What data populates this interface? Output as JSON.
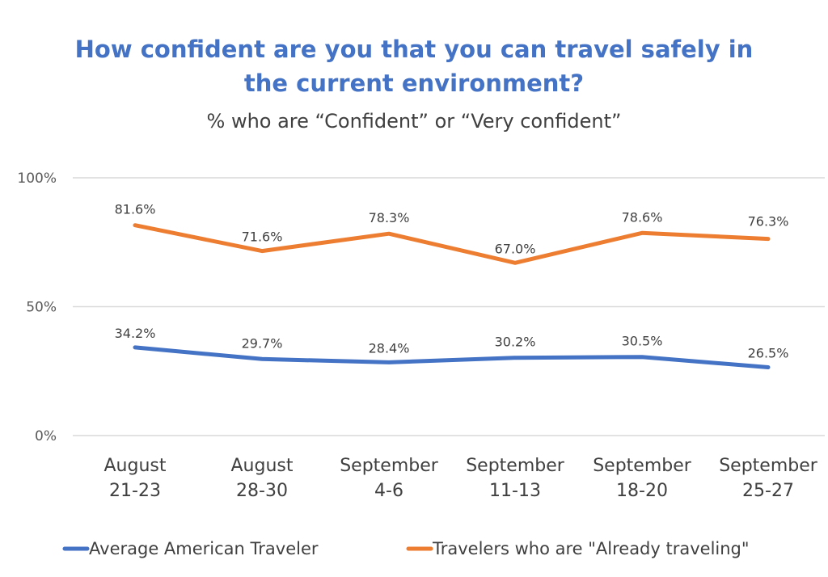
{
  "chart_data": {
    "type": "line",
    "title_lines": [
      "How confident are you that you can travel safely in",
      "the current environment?"
    ],
    "subtitle": "% who are “Confident” or “Very confident”",
    "categories": [
      [
        "August",
        "21-23"
      ],
      [
        "August",
        "28-30"
      ],
      [
        "September",
        "4-6"
      ],
      [
        "September",
        "11-13"
      ],
      [
        "September",
        "18-20"
      ],
      [
        "September",
        "25-27"
      ]
    ],
    "ylim": [
      0,
      100
    ],
    "yticks": [
      {
        "value": 0,
        "label": "0%"
      },
      {
        "value": 50,
        "label": "50%"
      },
      {
        "value": 100,
        "label": "100%"
      }
    ],
    "grid": true,
    "legend_position": "bottom",
    "series": [
      {
        "name": "Average American Traveler",
        "color": "#4472c4",
        "values": [
          34.2,
          29.7,
          28.4,
          30.2,
          30.5,
          26.5
        ],
        "labels": [
          "34.2%",
          "29.7%",
          "28.4%",
          "30.2%",
          "30.5%",
          "26.5%"
        ]
      },
      {
        "name": "Travelers who are \"Already traveling\"",
        "color": "#ed7d31",
        "values": [
          81.6,
          71.6,
          78.3,
          67.0,
          78.6,
          76.3
        ],
        "labels": [
          "81.6%",
          "71.6%",
          "78.3%",
          "67.0%",
          "78.6%",
          "76.3%"
        ]
      }
    ]
  }
}
